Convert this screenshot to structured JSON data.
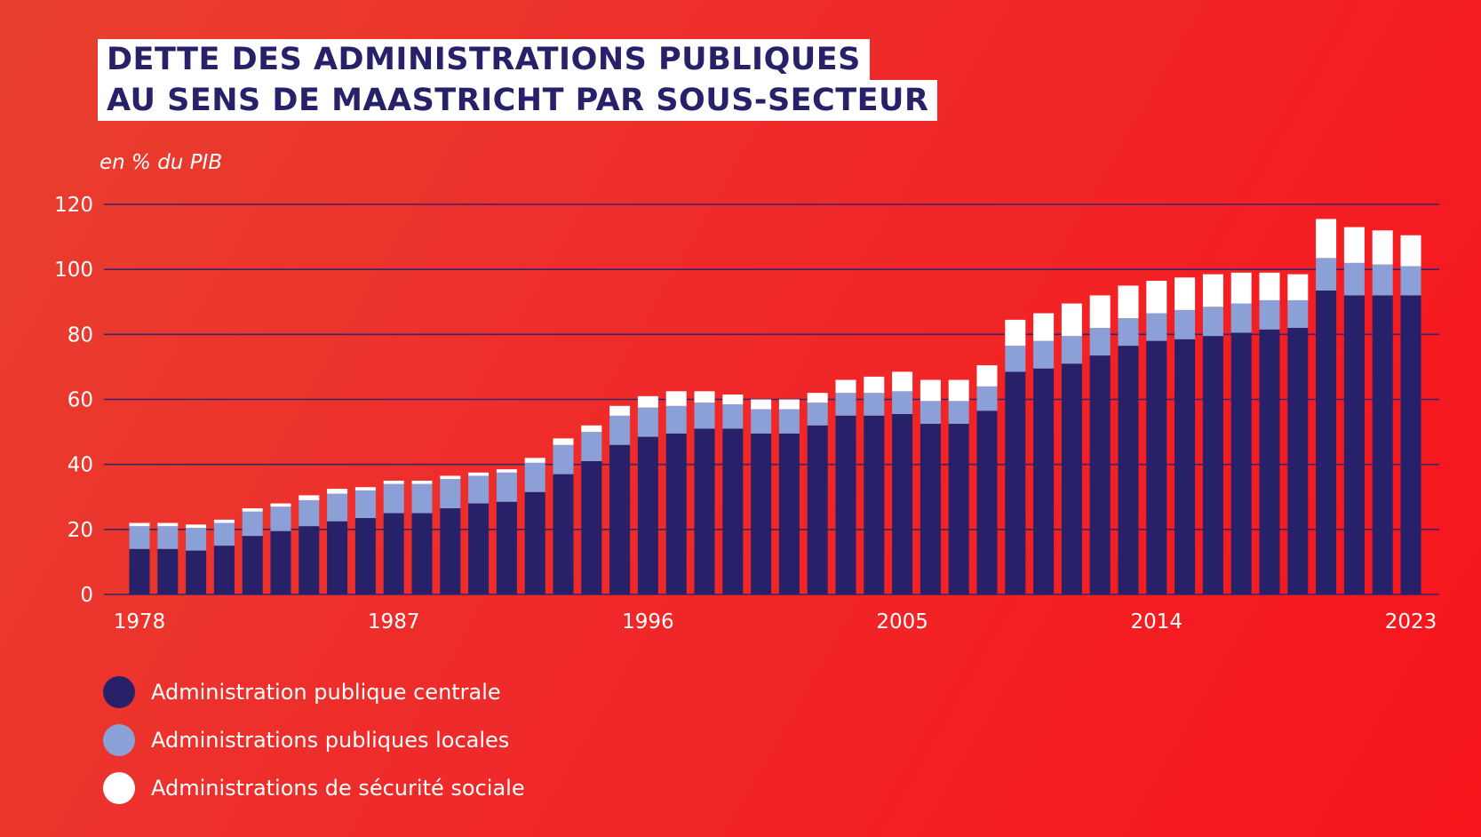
{
  "title": {
    "line1": "DETTE DES ADMINISTRATIONS PUBLIQUES",
    "line2": "AU SENS DE MAASTRICHT PAR SOUS-SECTEUR"
  },
  "unit_label": "en % du PIB",
  "colors": {
    "central": "#262168",
    "local": "#8aa0d6",
    "social": "#ffffff",
    "grid": "#3a2466",
    "text": "#ffffff"
  },
  "chart_data": {
    "type": "bar",
    "stacked": true,
    "title": "DETTE DES ADMINISTRATIONS PUBLIQUES AU SENS DE MAASTRICHT PAR SOUS-SECTEUR",
    "ylabel": "en % du PIB",
    "ylim": [
      0,
      120
    ],
    "yticks": [
      0,
      20,
      40,
      60,
      80,
      100,
      120
    ],
    "xticks": [
      1978,
      1987,
      1996,
      2005,
      2014,
      2023
    ],
    "grid": true,
    "legend_position": "bottom-left",
    "categories": [
      1978,
      1979,
      1980,
      1981,
      1982,
      1983,
      1984,
      1985,
      1986,
      1987,
      1988,
      1989,
      1990,
      1991,
      1992,
      1993,
      1994,
      1995,
      1996,
      1997,
      1998,
      1999,
      2000,
      2001,
      2002,
      2003,
      2004,
      2005,
      2006,
      2007,
      2008,
      2009,
      2010,
      2011,
      2012,
      2013,
      2014,
      2015,
      2016,
      2017,
      2018,
      2019,
      2020,
      2021,
      2022,
      2023
    ],
    "series": [
      {
        "name": "Administration publique centrale",
        "values": [
          14,
          14,
          13.5,
          15,
          18,
          19.5,
          21,
          22.5,
          23.5,
          25,
          25,
          26.5,
          28,
          28.5,
          31.5,
          37,
          41,
          46,
          48.5,
          49.5,
          51,
          51,
          49.5,
          49.5,
          52,
          55,
          55,
          55.5,
          52.5,
          52.5,
          56.5,
          68.5,
          69.5,
          71,
          73.5,
          76.5,
          78,
          78.5,
          79.5,
          80.5,
          81.5,
          82,
          93.5,
          92,
          92,
          92
        ]
      },
      {
        "name": "Administrations publiques locales",
        "values": [
          7,
          7,
          7,
          7,
          7.5,
          7.5,
          8,
          8.5,
          8.5,
          9,
          9,
          9,
          8.5,
          9,
          9,
          9,
          9,
          9,
          9,
          8.5,
          8,
          7.5,
          7.5,
          7.5,
          7,
          7,
          7,
          7,
          7,
          7,
          7.5,
          8,
          8.5,
          8.5,
          8.5,
          8.5,
          8.5,
          9,
          9,
          9,
          9,
          8.5,
          10,
          10,
          9.5,
          9
        ]
      },
      {
        "name": "Administrations de sécurité sociale",
        "values": [
          1,
          1,
          1,
          1,
          1,
          1,
          1.5,
          1.5,
          1,
          1,
          1,
          1,
          1,
          1,
          1.5,
          2,
          2,
          3,
          3.5,
          4.5,
          3.5,
          3,
          3,
          3,
          3,
          4,
          5,
          6,
          6.5,
          6.5,
          6.5,
          8,
          8.5,
          10,
          10,
          10,
          10,
          10,
          10,
          9.5,
          8.5,
          8,
          12,
          11,
          10.5,
          9.5
        ]
      }
    ]
  }
}
